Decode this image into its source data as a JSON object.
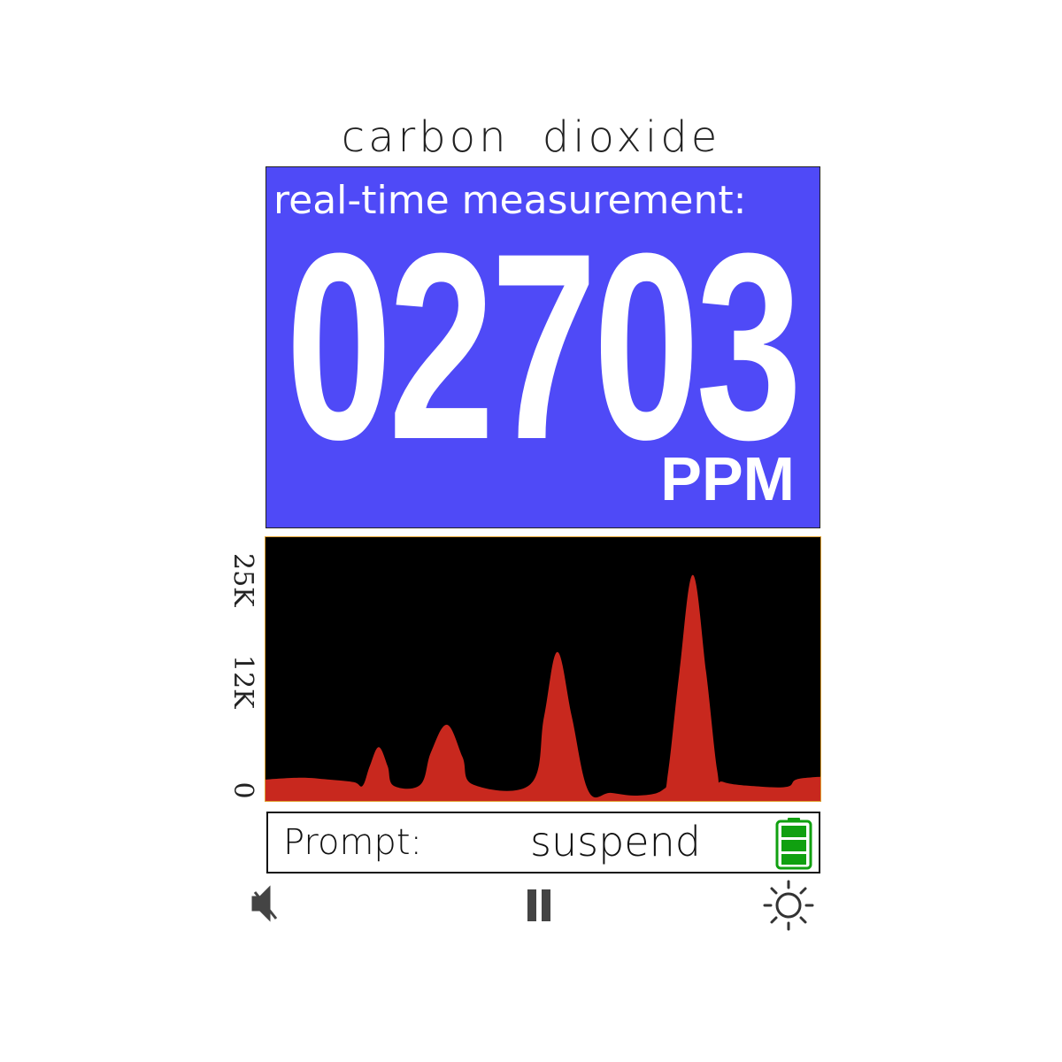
{
  "title": "carbon dioxide",
  "measurement": {
    "label": "real-time measurement:",
    "value": "02703",
    "unit": "PPM",
    "panel_color": "#4f4af7"
  },
  "chart_data": {
    "type": "area",
    "y_tick_labels": [
      "25K",
      "12K",
      "0"
    ],
    "y_ticks": [
      25000,
      12000,
      0
    ],
    "ylim": [
      0,
      29000
    ],
    "xlim": [
      0,
      100
    ],
    "grid": false,
    "fill_color": "#c8281e",
    "background": "#000000",
    "border_color": "#e0a030",
    "x": [
      0,
      6.4,
      11.2,
      15.9,
      17.5,
      18.8,
      20.4,
      22,
      23.1,
      27.9,
      29.8,
      32.7,
      35.5,
      37.5,
      47.8,
      50.2,
      52.6,
      55.2,
      58.2,
      62.2,
      67,
      71.5,
      72.6,
      74.6,
      77,
      79.4,
      81.4,
      82.6,
      89.3,
      94.1,
      95.7,
      100
    ],
    "y": [
      2000,
      2200,
      2000,
      1700,
      1300,
      3500,
      5600,
      3500,
      1300,
      1400,
      5000,
      8100,
      4500,
      1400,
      1500,
      9000,
      16200,
      9000,
      700,
      500,
      200,
      800,
      3000,
      14000,
      24800,
      14000,
      3000,
      1700,
      1200,
      1200,
      2000,
      2300
    ]
  },
  "status": {
    "prompt_label": "Prompt:",
    "prompt_value": "suspend",
    "battery_level": 1.0,
    "battery_color": "#10a010"
  },
  "controls": {
    "mute_icon": "speaker-muted",
    "pause_icon": "pause",
    "brightness_icon": "sun"
  }
}
